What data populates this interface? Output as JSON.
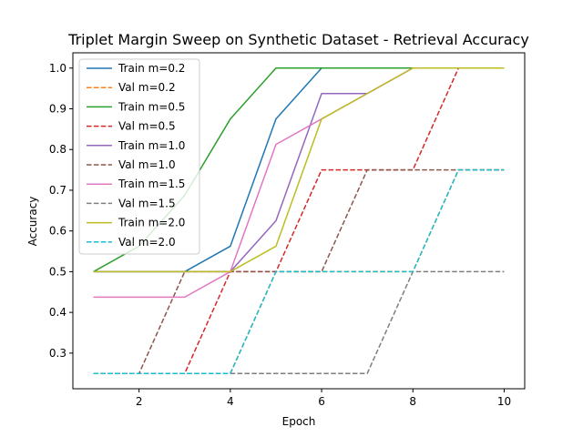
{
  "chart_data": {
    "type": "line",
    "title": "Triplet Margin Sweep on Synthetic Dataset - Retrieval Accuracy",
    "xlabel": "Epoch",
    "ylabel": "Accuracy",
    "xlim": [
      0.55,
      10.45
    ],
    "ylim": [
      0.2125,
      1.0375
    ],
    "xticks": [
      2,
      4,
      6,
      8,
      10
    ],
    "yticks": [
      0.3,
      0.4,
      0.5,
      0.6,
      0.7,
      0.8,
      0.9,
      1.0
    ],
    "xtick_labels": [
      "2",
      "4",
      "6",
      "8",
      "10"
    ],
    "ytick_labels": [
      "0.3",
      "0.4",
      "0.5",
      "0.6",
      "0.7",
      "0.8",
      "0.9",
      "1.0"
    ],
    "grid": false,
    "legend_position": "top-left",
    "x": [
      1,
      2,
      3,
      4,
      5,
      6,
      7,
      8,
      9,
      10
    ],
    "series": [
      {
        "name": "Train m=0.2",
        "color": "#1f77b4",
        "dash": "solid",
        "values": [
          0.5,
          0.5,
          0.5,
          0.5625,
          0.875,
          1.0,
          1.0,
          1.0,
          1.0,
          1.0
        ]
      },
      {
        "name": "Val m=0.2",
        "color": "#ff7f0e",
        "dash": "dashed",
        "values": [
          0.25,
          0.25,
          0.25,
          0.25,
          0.5,
          0.5,
          0.5,
          0.5,
          0.75,
          0.75
        ]
      },
      {
        "name": "Train m=0.5",
        "color": "#2ca02c",
        "dash": "solid",
        "values": [
          0.5,
          0.5625,
          0.6875,
          0.875,
          1.0,
          1.0,
          1.0,
          1.0,
          1.0,
          1.0
        ]
      },
      {
        "name": "Val m=0.5",
        "color": "#d62728",
        "dash": "dashed",
        "values": [
          0.25,
          0.25,
          0.25,
          0.5,
          0.5,
          0.75,
          0.75,
          0.75,
          1.0,
          1.0
        ]
      },
      {
        "name": "Train m=1.0",
        "color": "#9467bd",
        "dash": "solid",
        "values": [
          0.5,
          0.5,
          0.5,
          0.5,
          0.625,
          0.9375,
          0.9375,
          1.0,
          1.0,
          1.0
        ]
      },
      {
        "name": "Val m=1.0",
        "color": "#8c564b",
        "dash": "dashed",
        "values": [
          0.25,
          0.25,
          0.5,
          0.5,
          0.5,
          0.5,
          0.75,
          0.75,
          0.75,
          0.75
        ]
      },
      {
        "name": "Train m=1.5",
        "color": "#e377c2",
        "dash": "solid",
        "values": [
          0.4375,
          0.4375,
          0.4375,
          0.5,
          0.8125,
          0.875,
          0.9375,
          1.0,
          1.0,
          1.0
        ]
      },
      {
        "name": "Val m=1.5",
        "color": "#7f7f7f",
        "dash": "dashed",
        "values": [
          0.25,
          0.25,
          0.25,
          0.25,
          0.25,
          0.25,
          0.25,
          0.5,
          0.5,
          0.5
        ]
      },
      {
        "name": "Train m=2.0",
        "color": "#bcbd22",
        "dash": "solid",
        "values": [
          0.5,
          0.5,
          0.5,
          0.5,
          0.5625,
          0.875,
          0.9375,
          1.0,
          1.0,
          1.0
        ]
      },
      {
        "name": "Val m=2.0",
        "color": "#17becf",
        "dash": "dashed",
        "values": [
          0.25,
          0.25,
          0.25,
          0.25,
          0.5,
          0.5,
          0.5,
          0.5,
          0.75,
          0.75
        ]
      }
    ]
  }
}
